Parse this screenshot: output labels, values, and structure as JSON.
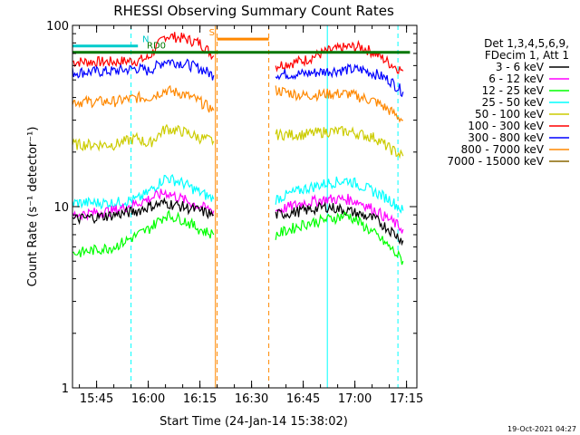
{
  "chart_data": {
    "type": "line",
    "title": "RHESSI Observing Summary Count Rates",
    "xlabel": "Start Time (24-Jan-14 15:38:02)",
    "ylabel": "Count Rate (s⁻¹ detector⁻¹)",
    "yscale": "log",
    "ylim": [
      1,
      100
    ],
    "xlim": [
      "15:38",
      "17:18"
    ],
    "x_ticks": [
      "15:45",
      "16:00",
      "16:15",
      "16:30",
      "16:45",
      "17:00",
      "17:15"
    ],
    "y_ticks": [
      "1",
      "10",
      "100"
    ],
    "timestamp": "19-Oct-2021 04:27",
    "legend": {
      "placement": "right",
      "header": [
        "Det 1,3,4,5,6,9,",
        "FDecim 1, Att 1"
      ],
      "entries": [
        {
          "label": "3 - 6 keV",
          "color": "#000000"
        },
        {
          "label": "6 - 12 keV",
          "color": "#ff00ff"
        },
        {
          "label": "12 - 25 keV",
          "color": "#00ff00"
        },
        {
          "label": "25 - 50 keV",
          "color": "#00ffff"
        },
        {
          "label": "50 - 100 keV",
          "color": "#cccc00"
        },
        {
          "label": "100 - 300 keV",
          "color": "#ff0000"
        },
        {
          "label": "300 - 800 keV",
          "color": "#0000ff"
        },
        {
          "label": "800 - 7000 keV",
          "color": "#ff8800"
        },
        {
          "label": "7000 - 15000 keV",
          "color": "#886600"
        }
      ]
    },
    "flags": [
      {
        "label": "N",
        "color": "#00cccc",
        "start": "15:38",
        "end": "15:57",
        "y": 77
      },
      {
        "label": "RD0",
        "color": "#007700",
        "start": "15:38",
        "end": "17:16",
        "y": 71
      },
      {
        "label": "S",
        "color": "#ff8800",
        "start": "16:20",
        "end": "16:35",
        "y": 84
      }
    ],
    "vlines": [
      {
        "time": "15:38",
        "color": "#00ffff",
        "style": "solid"
      },
      {
        "time": "15:55",
        "color": "#00ffff",
        "style": "dashed"
      },
      {
        "time": "16:19.5",
        "color": "#ff8800",
        "style": "solid"
      },
      {
        "time": "16:20",
        "color": "#ff8800",
        "style": "dashed"
      },
      {
        "time": "16:35",
        "color": "#ff8800",
        "style": "dashed"
      },
      {
        "time": "16:52",
        "color": "#00ffff",
        "style": "solid"
      },
      {
        "time": "17:12.5",
        "color": "#00ffff",
        "style": "dashed"
      }
    ],
    "series": [
      {
        "name": "100 - 300 keV",
        "color": "#ff0000",
        "points": [
          [
            "15:38",
            63
          ],
          [
            "15:50",
            63
          ],
          [
            "15:57",
            64
          ],
          [
            "16:00",
            66
          ],
          [
            "16:05",
            88
          ],
          [
            "16:10",
            85
          ],
          [
            "16:15",
            80
          ],
          [
            "16:19",
            68
          ],
          null,
          [
            "16:37",
            60
          ],
          [
            "16:45",
            64
          ],
          [
            "16:52",
            72
          ],
          [
            "16:58",
            76
          ],
          [
            "17:02",
            76
          ],
          [
            "17:06",
            70
          ],
          [
            "17:10",
            62
          ],
          [
            "17:14",
            56
          ]
        ]
      },
      {
        "name": "300 - 800 keV",
        "color": "#0000ff",
        "points": [
          [
            "15:38",
            55
          ],
          [
            "15:50",
            56
          ],
          [
            "15:57",
            58
          ],
          [
            "16:00",
            56
          ],
          [
            "16:05",
            64
          ],
          [
            "16:10",
            62
          ],
          [
            "16:15",
            58
          ],
          [
            "16:19",
            53
          ],
          null,
          [
            "16:37",
            54
          ],
          [
            "16:45",
            54
          ],
          [
            "16:52",
            56
          ],
          [
            "16:58",
            57
          ],
          [
            "17:02",
            57
          ],
          [
            "17:06",
            54
          ],
          [
            "17:10",
            50
          ],
          [
            "17:14",
            43
          ]
        ]
      },
      {
        "name": "800 - 7000 keV",
        "color": "#ff8800",
        "points": [
          [
            "15:38",
            38
          ],
          [
            "15:50",
            38
          ],
          [
            "15:57",
            40
          ],
          [
            "16:00",
            40
          ],
          [
            "16:05",
            44
          ],
          [
            "16:10",
            42
          ],
          [
            "16:15",
            38
          ],
          [
            "16:19",
            34
          ],
          null,
          [
            "16:37",
            44
          ],
          [
            "16:45",
            41
          ],
          [
            "16:52",
            42
          ],
          [
            "16:58",
            42
          ],
          [
            "17:02",
            40
          ],
          [
            "17:06",
            38
          ],
          [
            "17:10",
            34
          ],
          [
            "17:14",
            30
          ]
        ]
      },
      {
        "name": "50 - 100 keV",
        "color": "#cccc00",
        "points": [
          [
            "15:38",
            22
          ],
          [
            "15:50",
            22
          ],
          [
            "15:57",
            24
          ],
          [
            "16:00",
            22
          ],
          [
            "16:05",
            27
          ],
          [
            "16:10",
            26
          ],
          [
            "16:15",
            24
          ],
          [
            "16:19",
            23
          ],
          null,
          [
            "16:37",
            25
          ],
          [
            "16:45",
            25
          ],
          [
            "16:52",
            26
          ],
          [
            "16:58",
            26
          ],
          [
            "17:02",
            25
          ],
          [
            "17:06",
            24
          ],
          [
            "17:10",
            21
          ],
          [
            "17:14",
            19
          ]
        ]
      },
      {
        "name": "25 - 50 keV",
        "color": "#00ffff",
        "points": [
          [
            "15:38",
            10.5
          ],
          [
            "15:50",
            10.5
          ],
          [
            "15:57",
            11
          ],
          [
            "16:00",
            12
          ],
          [
            "16:05",
            14.5
          ],
          [
            "16:10",
            13.5
          ],
          [
            "16:15",
            12
          ],
          [
            "16:19",
            11
          ],
          null,
          [
            "16:37",
            11
          ],
          [
            "16:45",
            12.5
          ],
          [
            "16:52",
            13.5
          ],
          [
            "16:58",
            14
          ],
          [
            "17:02",
            13
          ],
          [
            "17:06",
            12
          ],
          [
            "17:10",
            11
          ],
          [
            "17:14",
            9.5
          ]
        ]
      },
      {
        "name": "6 - 12 keV",
        "color": "#ff00ff",
        "points": [
          [
            "15:38",
            9
          ],
          [
            "15:50",
            9.5
          ],
          [
            "15:57",
            10.5
          ],
          [
            "16:00",
            11
          ],
          [
            "16:05",
            12
          ],
          [
            "16:10",
            11
          ],
          [
            "16:15",
            10
          ],
          [
            "16:19",
            9.5
          ],
          null,
          [
            "16:37",
            9.5
          ],
          [
            "16:45",
            10.5
          ],
          [
            "16:52",
            11
          ],
          [
            "16:58",
            11
          ],
          [
            "17:02",
            10.5
          ],
          [
            "17:06",
            9.5
          ],
          [
            "17:10",
            8.5
          ],
          [
            "17:14",
            7.5
          ]
        ]
      },
      {
        "name": "3 - 6 keV",
        "color": "#000000",
        "points": [
          [
            "15:38",
            8.5
          ],
          [
            "15:50",
            9
          ],
          [
            "15:57",
            9.5
          ],
          [
            "16:00",
            10
          ],
          [
            "16:05",
            10.5
          ],
          [
            "16:10",
            10
          ],
          [
            "16:15",
            9.5
          ],
          [
            "16:19",
            9
          ],
          null,
          [
            "16:37",
            9
          ],
          [
            "16:45",
            9.5
          ],
          [
            "16:52",
            10
          ],
          [
            "16:58",
            9.5
          ],
          [
            "17:02",
            9
          ],
          [
            "17:06",
            8.5
          ],
          [
            "17:10",
            7.5
          ],
          [
            "17:14",
            6.5
          ]
        ]
      },
      {
        "name": "12 - 25 keV",
        "color": "#00ff00",
        "points": [
          [
            "15:38",
            5.5
          ],
          [
            "15:50",
            6
          ],
          [
            "15:57",
            7
          ],
          [
            "16:00",
            7.5
          ],
          [
            "16:05",
            9
          ],
          [
            "16:10",
            8.5
          ],
          [
            "16:15",
            7.5
          ],
          [
            "16:19",
            7
          ],
          null,
          [
            "16:37",
            7
          ],
          [
            "16:45",
            8
          ],
          [
            "16:52",
            8.5
          ],
          [
            "16:58",
            9
          ],
          [
            "17:02",
            8
          ],
          [
            "17:06",
            7
          ],
          [
            "17:10",
            6
          ],
          [
            "17:14",
            5
          ]
        ]
      }
    ]
  }
}
